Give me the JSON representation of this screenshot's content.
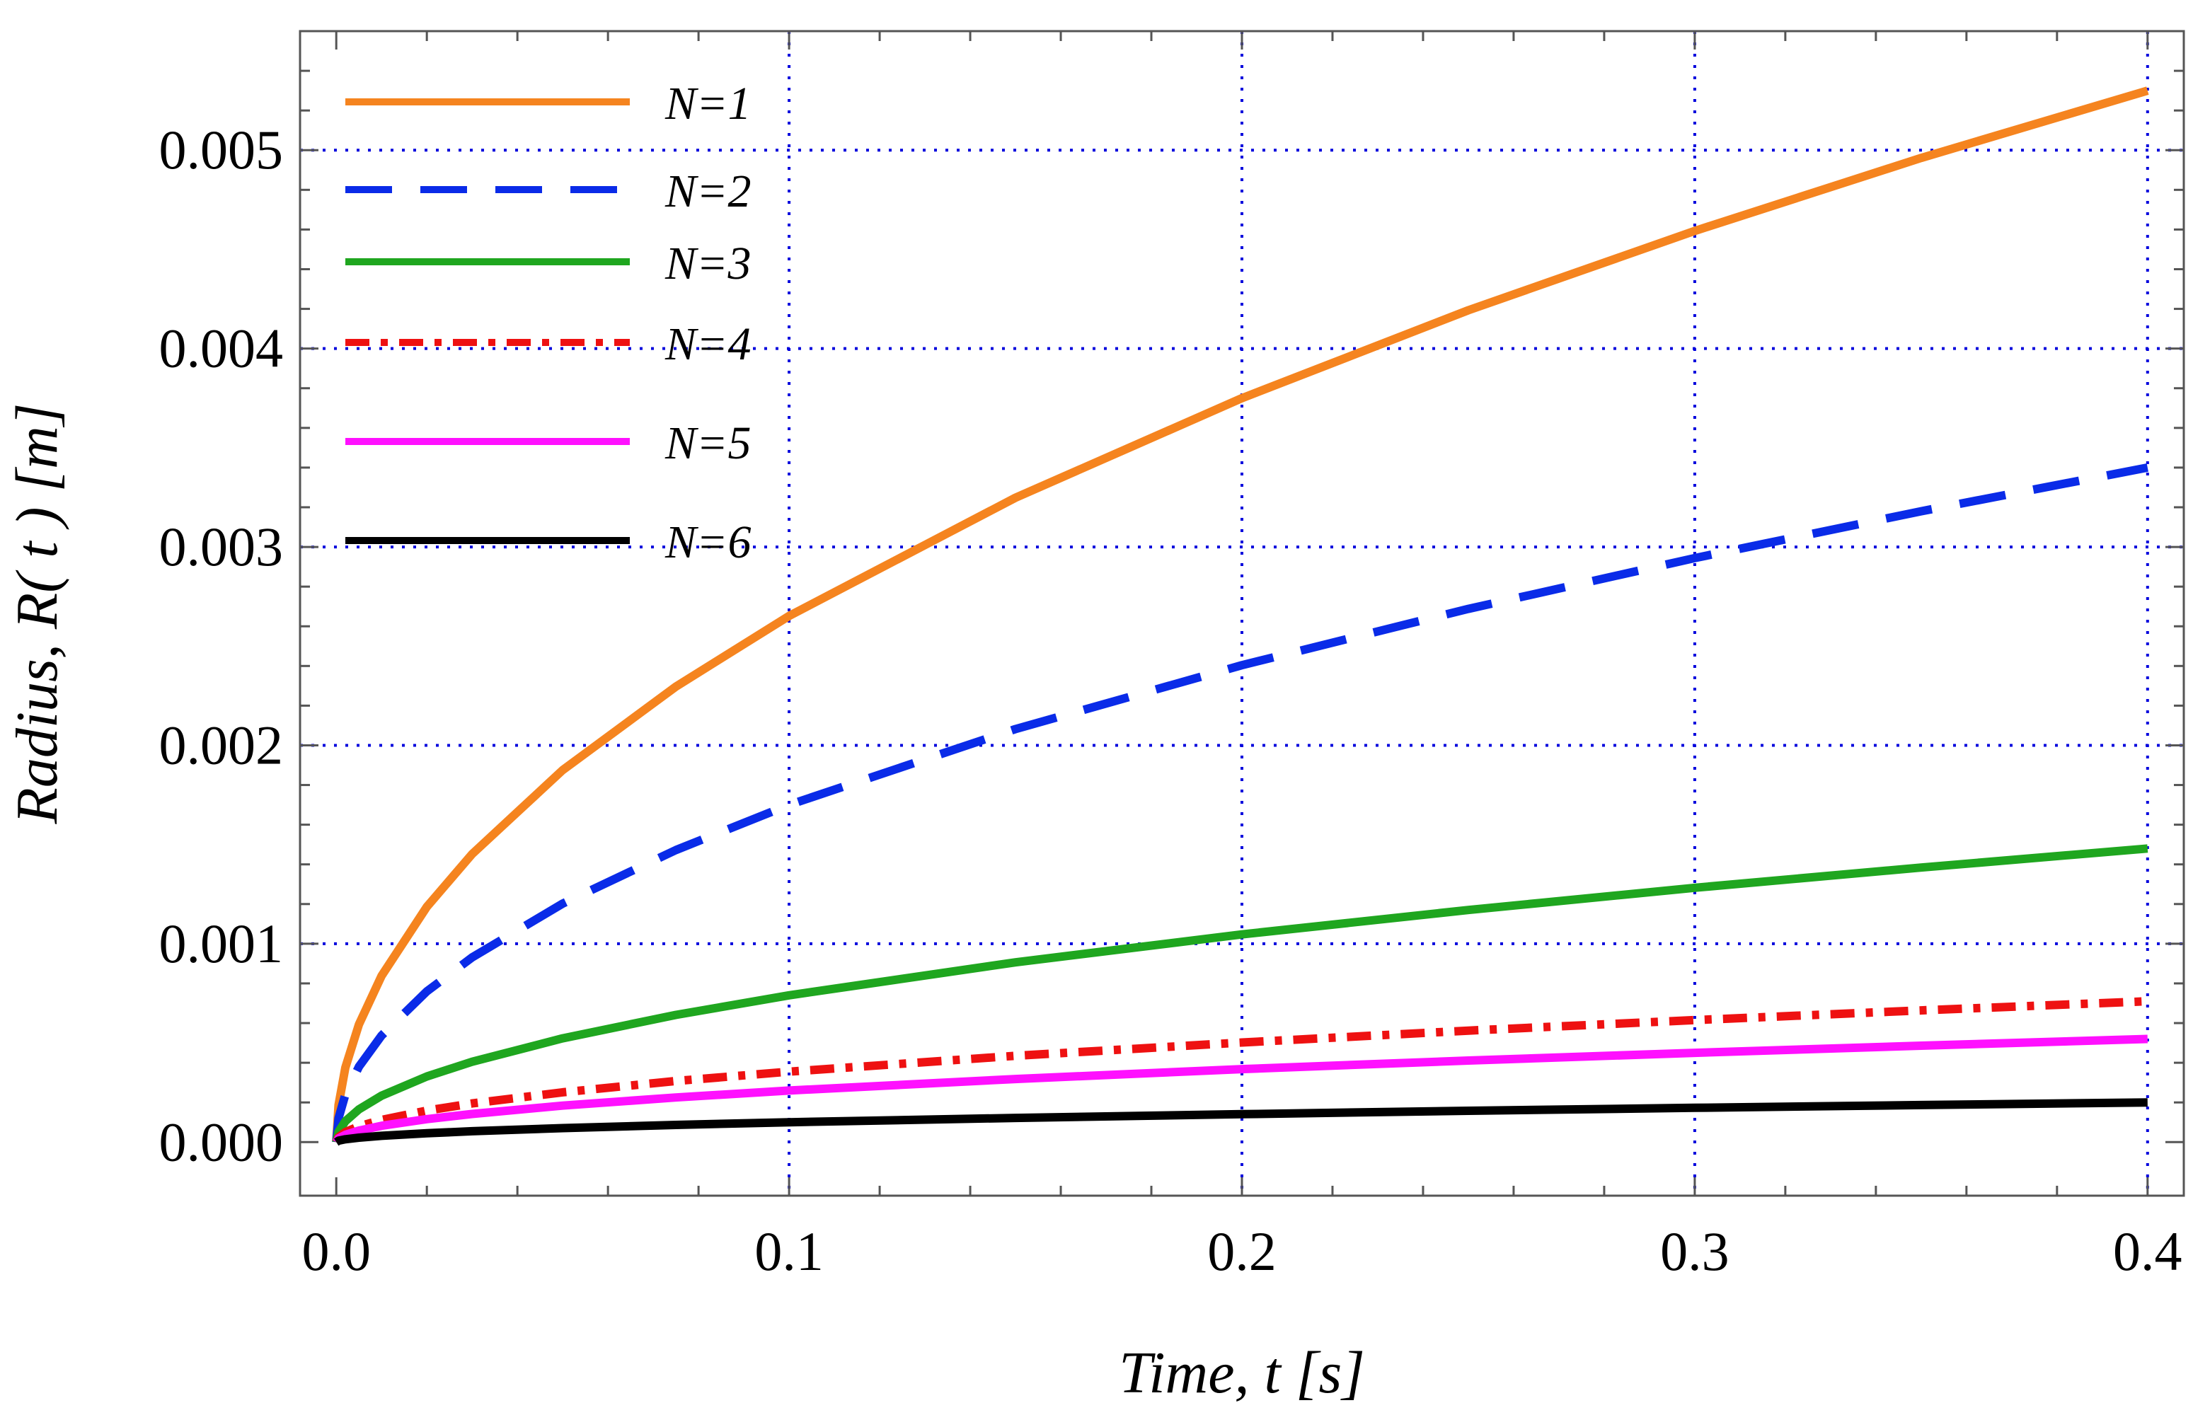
{
  "chart_data": {
    "type": "line",
    "title": "",
    "xlabel": "Time, t [s]",
    "ylabel": "Radius,  R( t ) [m]",
    "xlim": [
      -0.008,
      0.408
    ],
    "ylim": [
      -0.00027,
      0.0056
    ],
    "xticks": [
      "0.0",
      "0.1",
      "0.2",
      "0.3",
      "0.4"
    ],
    "xtick_values": [
      0.0,
      0.1,
      0.2,
      0.3,
      0.4
    ],
    "yticks": [
      "0.000",
      "0.001",
      "0.002",
      "0.003",
      "0.004",
      "0.005"
    ],
    "ytick_values": [
      0.0,
      0.001,
      0.002,
      0.003,
      0.004,
      0.005
    ],
    "grid": true,
    "grid_color": "#0000dd",
    "legend_position": "top-left",
    "x": [
      0.0,
      0.0005,
      0.002,
      0.005,
      0.01,
      0.02,
      0.03,
      0.05,
      0.075,
      0.1,
      0.15,
      0.2,
      0.25,
      0.3,
      0.35,
      0.4
    ],
    "series": [
      {
        "name": "N=1",
        "color": "#f5841f",
        "dash": "solid",
        "values": [
          0.0,
          0.000187,
          0.000375,
          0.000593,
          0.000838,
          0.001186,
          0.001452,
          0.001875,
          0.002296,
          0.002652,
          0.003248,
          0.00375,
          0.004193,
          0.004593,
          0.004961,
          0.0053
        ]
      },
      {
        "name": "N=2",
        "color": "#0a2be8",
        "dash": "dashed",
        "values": [
          0.0,
          0.00012,
          0.00024,
          0.00038,
          0.000537,
          0.00076,
          0.000931,
          0.001202,
          0.001472,
          0.0017,
          0.002082,
          0.002404,
          0.002688,
          0.002944,
          0.00318,
          0.0034
        ]
      },
      {
        "name": "N=3",
        "color": "#1fa61f",
        "dash": "solid",
        "values": [
          0.0,
          5.23e-05,
          0.000105,
          0.000165,
          0.000234,
          0.000331,
          0.000405,
          0.000523,
          0.000641,
          0.00074,
          0.000906,
          0.001047,
          0.00117,
          0.001282,
          0.001384,
          0.00148
        ]
      },
      {
        "name": "N=4",
        "color": "#ee1111",
        "dash": "dashdot",
        "values": [
          0.0,
          2.51e-05,
          5.02e-05,
          7.94e-05,
          0.000112,
          0.000159,
          0.000195,
          0.000251,
          0.000308,
          0.000355,
          0.000435,
          0.000502,
          0.000562,
          0.000615,
          0.000664,
          0.00071
        ]
      },
      {
        "name": "N=5",
        "color": "#ff10ff",
        "dash": "solid",
        "values": [
          0.0,
          1.84e-05,
          3.68e-05,
          5.81e-05,
          8.22e-05,
          0.000116,
          0.000142,
          0.000184,
          0.000225,
          0.00026,
          0.000318,
          0.000368,
          0.000411,
          0.00045,
          0.000486,
          0.00052
        ]
      },
      {
        "name": "N=6",
        "color": "#000000",
        "dash": "solid",
        "values": [
          0.0,
          7.1e-06,
          1.41e-05,
          2.24e-05,
          3.16e-05,
          4.47e-05,
          5.48e-05,
          7.07e-05,
          8.66e-05,
          0.0001,
          0.000122,
          0.000141,
          0.000158,
          0.000173,
          0.000187,
          0.0002
        ]
      }
    ]
  }
}
